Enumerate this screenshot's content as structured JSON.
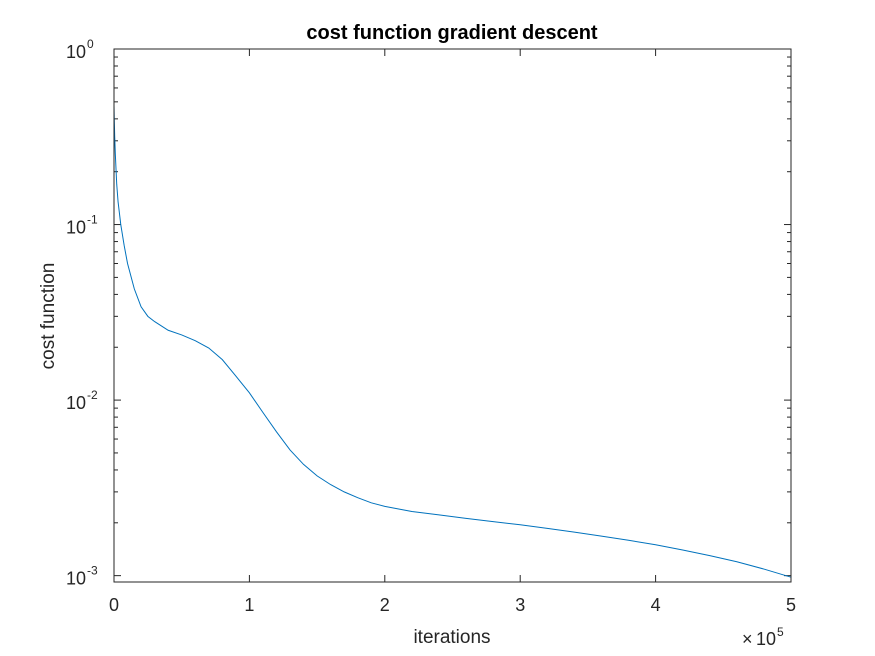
{
  "chart_data": {
    "type": "line",
    "title": "cost function gradient descent",
    "xlabel": "iterations",
    "ylabel": "cost function",
    "xscale": "linear",
    "yscale": "log",
    "x_multiplier": {
      "base": "10",
      "exponent": "5"
    },
    "xlim": [
      0,
      500000
    ],
    "ylim": [
      0.00092,
      1
    ],
    "x_ticks": [
      {
        "value": 0,
        "label": "0"
      },
      {
        "value": 100000,
        "label": "1"
      },
      {
        "value": 200000,
        "label": "2"
      },
      {
        "value": 300000,
        "label": "3"
      },
      {
        "value": 400000,
        "label": "4"
      },
      {
        "value": 500000,
        "label": "5"
      }
    ],
    "y_ticks": [
      {
        "value": 1,
        "base": "10",
        "exponent": "0"
      },
      {
        "value": 0.1,
        "base": "10",
        "exponent": "-1"
      },
      {
        "value": 0.01,
        "base": "10",
        "exponent": "-2"
      },
      {
        "value": 0.001,
        "base": "10",
        "exponent": "-3"
      }
    ],
    "grid": false,
    "box": true,
    "series": [
      {
        "name": "cost",
        "color": "#0072BD",
        "x": [
          0,
          200,
          500,
          1000,
          2000,
          3000,
          5000,
          7500,
          10000,
          15000,
          20000,
          25000,
          30000,
          40000,
          50000,
          60000,
          70000,
          80000,
          90000,
          100000,
          110000,
          120000,
          130000,
          140000,
          150000,
          160000,
          170000,
          180000,
          190000,
          200000,
          220000,
          240000,
          260000,
          280000,
          300000,
          320000,
          340000,
          360000,
          380000,
          400000,
          420000,
          440000,
          460000,
          480000,
          500000
        ],
        "y": [
          0.48,
          0.4,
          0.32,
          0.25,
          0.17,
          0.135,
          0.1,
          0.076,
          0.06,
          0.043,
          0.034,
          0.03,
          0.028,
          0.025,
          0.0235,
          0.0218,
          0.0198,
          0.017,
          0.0137,
          0.011,
          0.0085,
          0.0066,
          0.0052,
          0.0043,
          0.0037,
          0.0033,
          0.003,
          0.00278,
          0.0026,
          0.00248,
          0.00232,
          0.00222,
          0.00212,
          0.00203,
          0.00195,
          0.00186,
          0.00177,
          0.00168,
          0.00159,
          0.0015,
          0.0014,
          0.0013,
          0.0012,
          0.00109,
          0.00098
        ]
      }
    ]
  }
}
